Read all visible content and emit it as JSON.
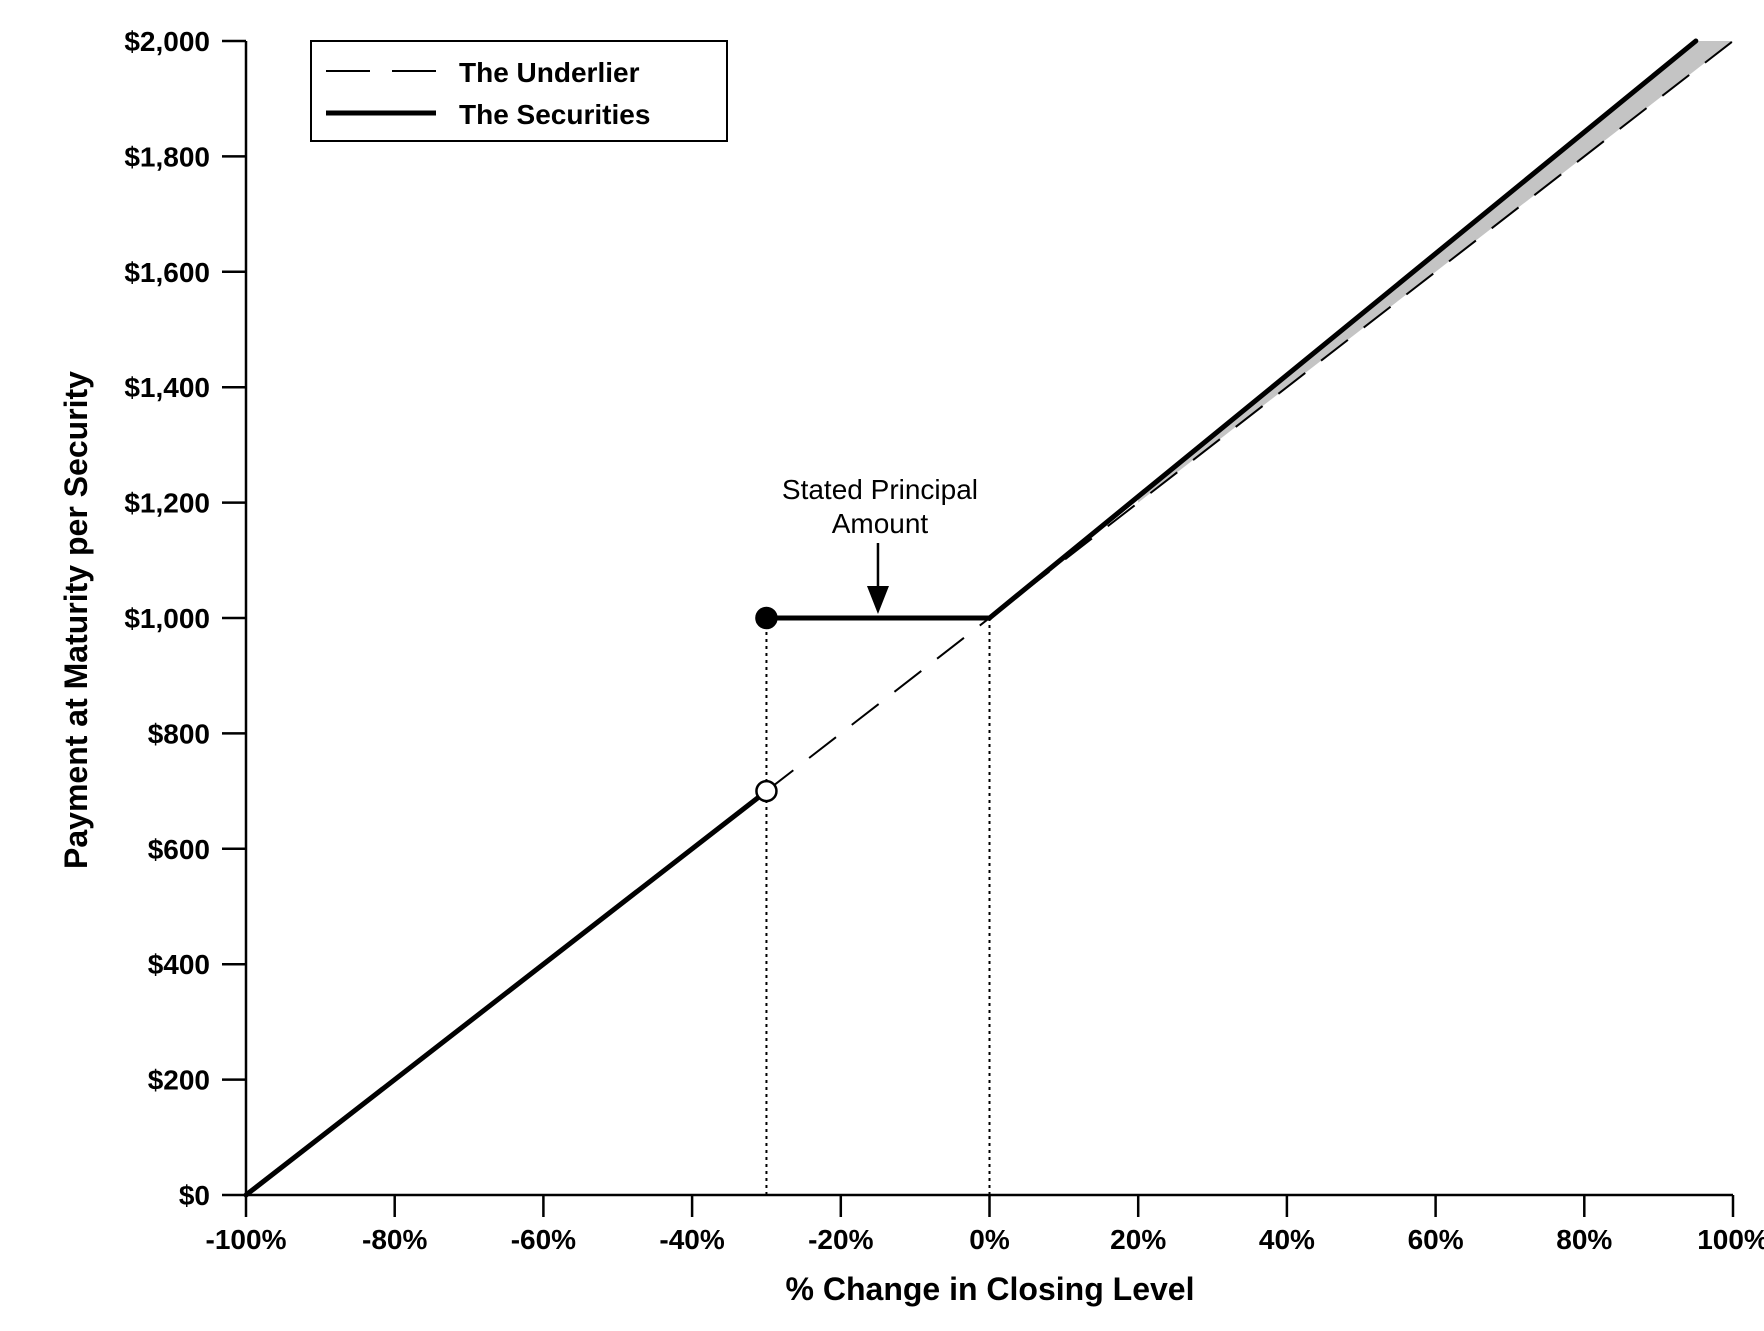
{
  "chart_data": {
    "type": "line",
    "xlabel": "% Change in Closing Level",
    "ylabel": "Payment at Maturity per Security",
    "xlim": [
      -100,
      100
    ],
    "ylim": [
      0,
      2000
    ],
    "x_ticks": [
      -100,
      -80,
      -60,
      -40,
      -20,
      0,
      20,
      40,
      60,
      80,
      100
    ],
    "x_tick_labels": [
      "-100%",
      "-80%",
      "-60%",
      "-40%",
      "-20%",
      "0%",
      "20%",
      "40%",
      "60%",
      "80%",
      "100%"
    ],
    "y_ticks": [
      0,
      200,
      400,
      600,
      800,
      1000,
      1200,
      1400,
      1600,
      1800,
      2000
    ],
    "y_tick_labels": [
      "$0",
      "$200",
      "$400",
      "$600",
      "$800",
      "$1,000",
      "$1,200",
      "$1,400",
      "$1,600",
      "$1,800",
      "$2,000"
    ],
    "legend_position": "top-left",
    "grid": false,
    "series": [
      {
        "name": "The Underlier",
        "style": "dashed",
        "color": "#000000",
        "x": [
          -30,
          0,
          100
        ],
        "y": [
          700,
          1000,
          2000
        ]
      },
      {
        "name": "The Securities",
        "style": "solid",
        "color": "#000000",
        "segments": [
          {
            "x": [
              -100,
              -30
            ],
            "y": [
              0,
              700
            ]
          },
          {
            "x": [
              -30,
              0
            ],
            "y": [
              1000,
              1000
            ]
          },
          {
            "x": [
              0,
              95
            ],
            "y": [
              1000,
              2000
            ]
          }
        ]
      }
    ],
    "shaded_region": {
      "color": "#c0c0c0",
      "x": [
        20,
        100
      ],
      "upper_slope_per_pct": 10.53,
      "lower_slope_per_pct": 10
    },
    "markers": [
      {
        "x": -30,
        "y": 1000,
        "fill": "filled"
      },
      {
        "x": -30,
        "y": 700,
        "fill": "open"
      }
    ],
    "reference_lines": [
      {
        "x": -30,
        "y_from": 0,
        "y_to": 1000,
        "style": "dotted"
      },
      {
        "x": 0,
        "y_from": 0,
        "y_to": 1000,
        "style": "dotted"
      }
    ],
    "annotations": [
      {
        "text_lines": [
          "Stated Principal",
          "Amount"
        ],
        "arrow_target": {
          "x": -15,
          "y": 1000
        }
      }
    ]
  }
}
